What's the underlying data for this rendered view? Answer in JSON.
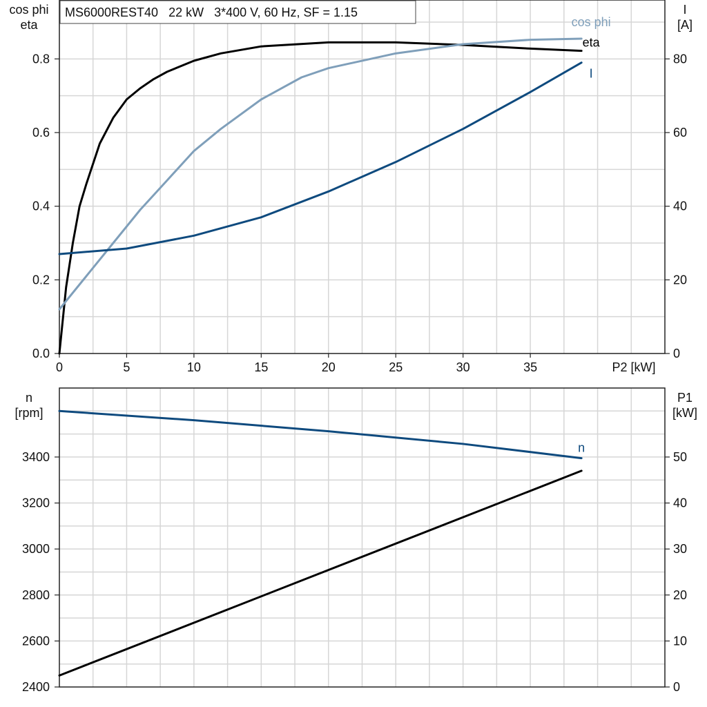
{
  "title": "MS6000REST40   22 kW   3*400 V, 60 Hz, SF = 1.15",
  "colors": {
    "eta": "#000000",
    "cos_phi": "#7f9fba",
    "current": "#0e4a7e",
    "speed": "#0e4a7e",
    "p1": "#000000",
    "grid": "#d6d6d6"
  },
  "chart_data": [
    {
      "type": "line",
      "panel": "top",
      "grid": true,
      "xlabel": "P2 [kW]",
      "xlim": [
        0,
        45
      ],
      "xticks": [
        0,
        5,
        10,
        15,
        20,
        25,
        30,
        35
      ],
      "y_left": {
        "label_lines": [
          "cos phi",
          "eta"
        ],
        "lim": [
          0,
          0.96
        ],
        "ticks": [
          0.0,
          0.2,
          0.4,
          0.6,
          0.8
        ],
        "tick_labels": [
          "0.0",
          "0.2",
          "0.4",
          "0.6",
          "0.8"
        ]
      },
      "y_right": {
        "label_lines": [
          "I",
          "[A]"
        ],
        "lim": [
          0,
          96
        ],
        "ticks": [
          0,
          20,
          40,
          60,
          80
        ],
        "tick_labels": [
          "0",
          "20",
          "40",
          "60",
          "80"
        ]
      },
      "series": [
        {
          "name": "eta",
          "axis": "left",
          "color_key": "eta",
          "x": [
            0,
            0.5,
            1,
            1.5,
            2,
            3,
            4,
            5,
            6,
            7,
            8,
            10,
            12,
            15,
            20,
            25,
            30,
            35,
            38.8
          ],
          "y": [
            0.0,
            0.18,
            0.3,
            0.4,
            0.46,
            0.57,
            0.64,
            0.69,
            0.72,
            0.745,
            0.765,
            0.795,
            0.815,
            0.834,
            0.845,
            0.845,
            0.838,
            0.828,
            0.822
          ]
        },
        {
          "name": "cos phi",
          "axis": "left",
          "color_key": "cos_phi",
          "x": [
            0,
            2,
            4,
            6,
            8,
            10,
            12,
            15,
            18,
            20,
            25,
            30,
            35,
            38.8
          ],
          "y": [
            0.12,
            0.21,
            0.3,
            0.39,
            0.47,
            0.55,
            0.61,
            0.69,
            0.75,
            0.775,
            0.815,
            0.84,
            0.852,
            0.855
          ]
        },
        {
          "name": "I",
          "axis": "right",
          "color_key": "current",
          "x": [
            0,
            5,
            10,
            15,
            20,
            25,
            30,
            35,
            38.8
          ],
          "y": [
            27,
            28.5,
            32,
            37,
            44,
            52,
            61,
            71,
            79
          ]
        }
      ]
    },
    {
      "type": "line",
      "panel": "bottom",
      "grid": true,
      "xlim": [
        0,
        45
      ],
      "y_left": {
        "label_lines": [
          "n",
          "[rpm]"
        ],
        "lim": [
          2400,
          3700
        ],
        "ticks": [
          2400,
          2600,
          2800,
          3000,
          3200,
          3400
        ],
        "tick_labels": [
          "2400",
          "2600",
          "2800",
          "3000",
          "3200",
          "3400"
        ]
      },
      "y_right": {
        "label_lines": [
          "P1",
          "[kW]"
        ],
        "lim": [
          0,
          65
        ],
        "ticks": [
          0,
          10,
          20,
          30,
          40,
          50
        ],
        "tick_labels": [
          "0",
          "10",
          "20",
          "30",
          "40",
          "50"
        ]
      },
      "series": [
        {
          "name": "n",
          "axis": "left",
          "color_key": "speed",
          "x": [
            0,
            10,
            20,
            30,
            38.8
          ],
          "y": [
            3600,
            3560,
            3512,
            3457,
            3395
          ]
        },
        {
          "name": "",
          "axis": "right",
          "color_key": "p1",
          "x": [
            0,
            38.8
          ],
          "y": [
            2.5,
            47
          ]
        }
      ]
    }
  ]
}
